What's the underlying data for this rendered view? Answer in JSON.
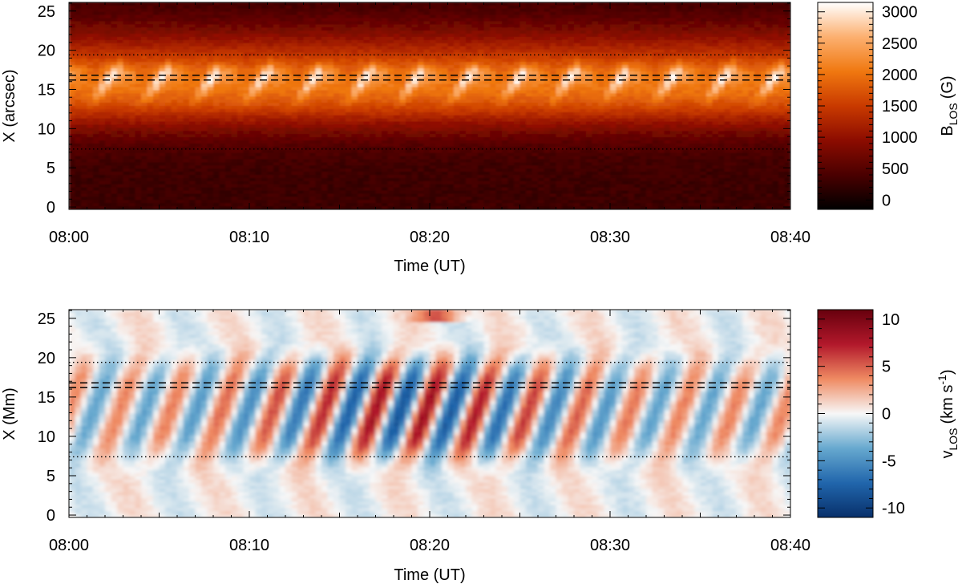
{
  "chart_data": [
    {
      "type": "heatmap",
      "xlabel": "Time (UT)",
      "ylabel": "X (arcsec)",
      "x_ticks": [
        "08:00",
        "08:10",
        "08:20",
        "08:30",
        "08:40"
      ],
      "xlim": [
        "08:00",
        "08:40"
      ],
      "y_ticks": [
        0,
        5,
        10,
        15,
        20,
        25
      ],
      "ylim": [
        -0.3,
        26.1
      ],
      "colorbar": {
        "label": "B",
        "label_sub": "LOS",
        "label_unit": "(G)",
        "ticks": [
          0,
          500,
          1000,
          1500,
          2000,
          2500,
          3000
        ],
        "range": [
          -150,
          3150
        ],
        "colormap": [
          "#000000",
          "#4a0000",
          "#8c0c00",
          "#c93a00",
          "#f07810",
          "#fcb070",
          "#ffffff"
        ]
      },
      "reference_lines": [
        {
          "style": "dotted",
          "y": 19.4
        },
        {
          "style": "dashed",
          "y": 16.8
        },
        {
          "style": "dashed",
          "y": 16.2
        },
        {
          "style": "dotted",
          "y": 7.4
        }
      ]
    },
    {
      "type": "heatmap",
      "xlabel": "Time (UT)",
      "ylabel": "X (Mm)",
      "x_ticks": [
        "08:00",
        "08:10",
        "08:20",
        "08:30",
        "08:40"
      ],
      "xlim": [
        "08:00",
        "08:40"
      ],
      "y_ticks": [
        0,
        5,
        10,
        15,
        20,
        25
      ],
      "ylim": [
        -0.3,
        26.1
      ],
      "colorbar": {
        "label": "v",
        "label_sub": "LOS",
        "label_unit_pre": "(km s",
        "label_unit_sup": "-1",
        "label_unit_post": ")",
        "ticks": [
          -10,
          -5,
          0,
          5,
          10
        ],
        "range": [
          -11,
          11
        ],
        "colormap": [
          "#08306b",
          "#2166ac",
          "#67a9cf",
          "#f7f7f7",
          "#ef8a62",
          "#b2182b",
          "#67000d"
        ]
      },
      "reference_lines": [
        {
          "style": "dotted",
          "y": 19.4
        },
        {
          "style": "dashed",
          "y": 16.8
        },
        {
          "style": "dashed",
          "y": 16.2
        },
        {
          "style": "dotted",
          "y": 7.4
        }
      ]
    }
  ]
}
